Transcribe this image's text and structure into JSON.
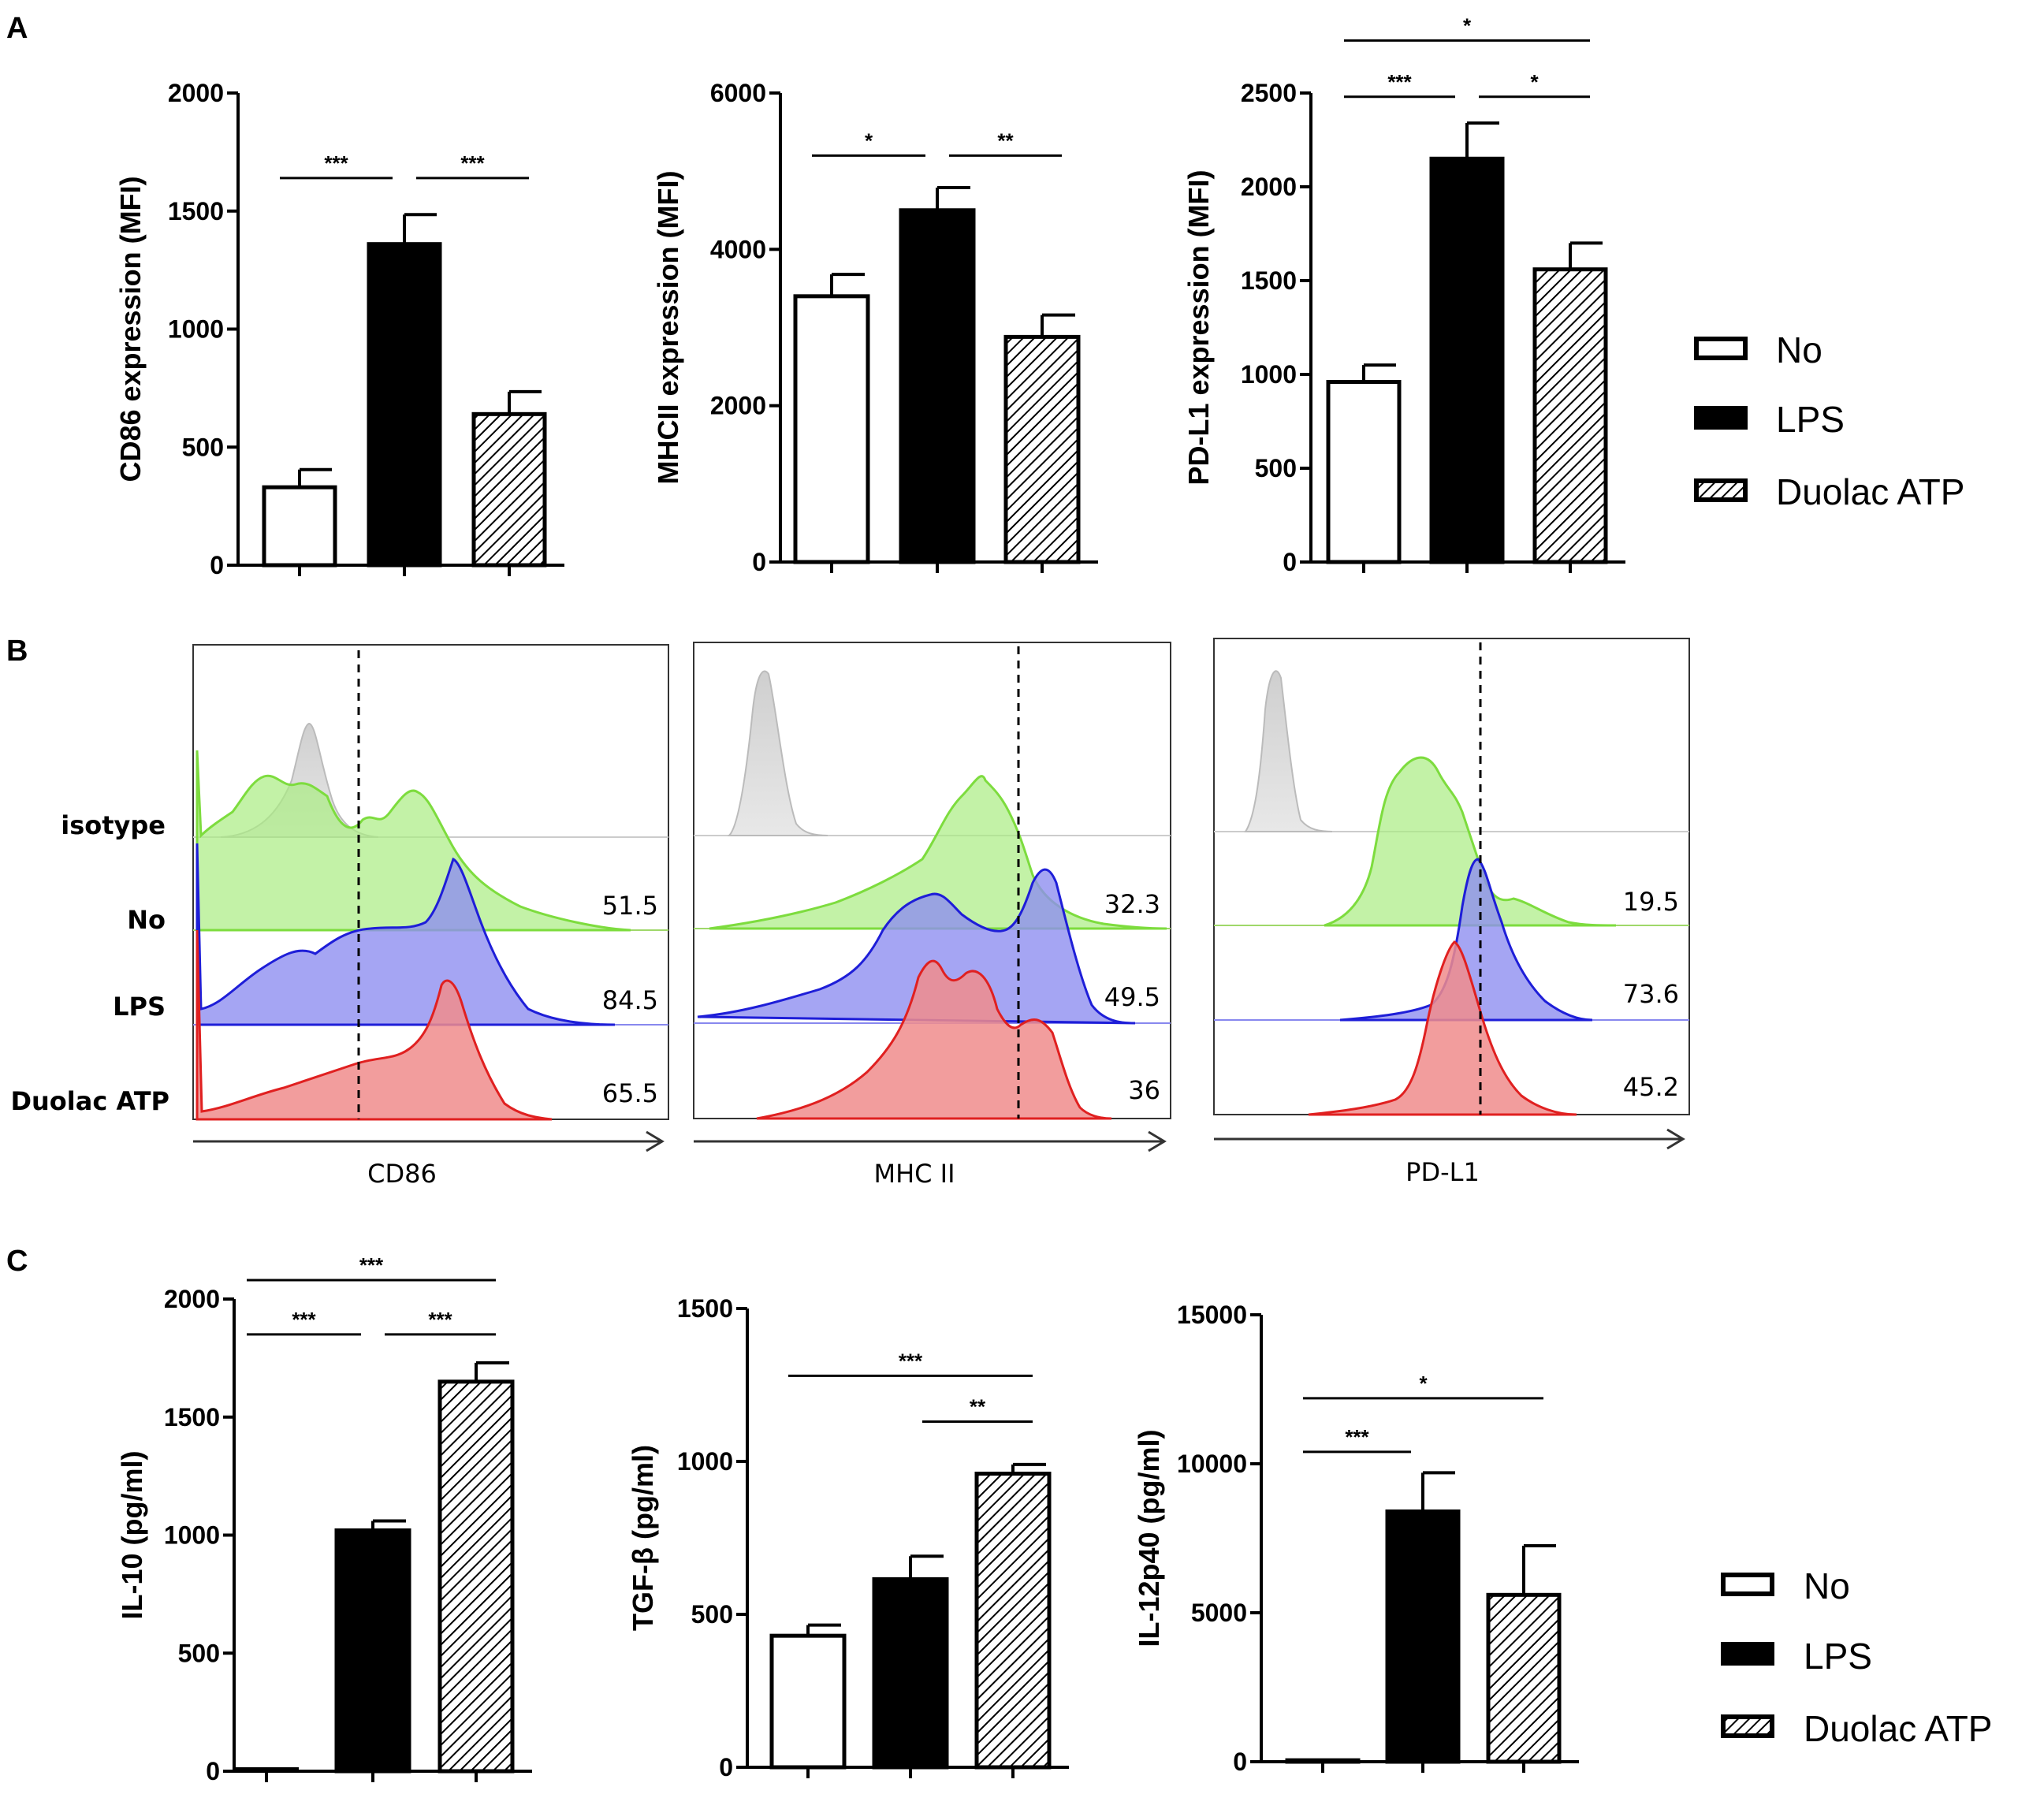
{
  "panel_labels": {
    "A": "A",
    "B": "B",
    "C": "C"
  },
  "legend_items": [
    {
      "label": "No",
      "fill": "white"
    },
    {
      "label": "LPS",
      "fill": "black"
    },
    {
      "label": "Duolac ATP",
      "fill": "hatch"
    }
  ],
  "chart_data": [
    {
      "id": "A1",
      "type": "bar",
      "categories": [
        "No",
        "LPS",
        "Duolac ATP"
      ],
      "values": [
        330,
        1360,
        640
      ],
      "errors": [
        75,
        125,
        95
      ],
      "ylabel": "CD86 expression (MFI)",
      "ylim": [
        0,
        2000
      ],
      "yticks": [
        0,
        500,
        1000,
        1500,
        2000
      ],
      "significance": [
        {
          "from": 0,
          "to": 1,
          "label": "***",
          "level": 1640
        },
        {
          "from": 1,
          "to": 2,
          "label": "***",
          "level": 1640
        }
      ]
    },
    {
      "id": "A2",
      "type": "bar",
      "categories": [
        "No",
        "LPS",
        "Duolac ATP"
      ],
      "values": [
        3400,
        4500,
        2880
      ],
      "errors": [
        280,
        290,
        280
      ],
      "ylabel": "MHCII expression (MFI)",
      "ylim": [
        0,
        6000
      ],
      "yticks": [
        0,
        2000,
        4000,
        6000
      ],
      "significance": [
        {
          "from": 0,
          "to": 1,
          "label": "*",
          "level": 5200
        },
        {
          "from": 1,
          "to": 2,
          "label": "**",
          "level": 5200
        }
      ]
    },
    {
      "id": "A3",
      "type": "bar",
      "categories": [
        "No",
        "LPS",
        "Duolac ATP"
      ],
      "values": [
        960,
        2150,
        1560
      ],
      "errors": [
        90,
        190,
        140
      ],
      "ylabel": "PD-L1 expression (MFI)",
      "ylim": [
        0,
        2500
      ],
      "yticks": [
        0,
        500,
        1000,
        1500,
        2000,
        2500
      ],
      "significance": [
        {
          "from": 0,
          "to": 1,
          "label": "***",
          "level": 2480
        },
        {
          "from": 1,
          "to": 2,
          "label": "*",
          "level": 2480
        },
        {
          "from": 0,
          "to": 2,
          "label": "*",
          "level": 2780
        }
      ]
    },
    {
      "id": "B1",
      "type": "histogram",
      "xlabel": "CD86",
      "row_labels": [
        "isotype",
        "No",
        "LPS",
        "Duolac ATP"
      ],
      "percentages": [
        "51.5",
        "84.5",
        "65.5"
      ]
    },
    {
      "id": "B2",
      "type": "histogram",
      "xlabel": "MHC II",
      "percentages": [
        "32.3",
        "49.5",
        "36"
      ]
    },
    {
      "id": "B3",
      "type": "histogram",
      "xlabel": "PD-L1",
      "percentages": [
        "19.5",
        "73.6",
        "45.2"
      ]
    },
    {
      "id": "C1",
      "type": "bar",
      "categories": [
        "No",
        "LPS",
        "Duolac ATP"
      ],
      "values": [
        0,
        1020,
        1650
      ],
      "errors": [
        0,
        40,
        80
      ],
      "ylabel": "IL-10 (pg/ml)",
      "ylim": [
        0,
        2000
      ],
      "yticks": [
        0,
        500,
        1000,
        1500,
        2000
      ],
      "significance": [
        {
          "from": 0,
          "to": 1,
          "label": "***",
          "level": 1850
        },
        {
          "from": 1,
          "to": 2,
          "label": "***",
          "level": 1850
        },
        {
          "from": 0,
          "to": 2,
          "label": "***",
          "level": 2080
        }
      ]
    },
    {
      "id": "C2",
      "type": "bar",
      "categories": [
        "No",
        "LPS",
        "Duolac ATP"
      ],
      "values": [
        430,
        615,
        960
      ],
      "errors": [
        35,
        75,
        30
      ],
      "ylabel": "TGF-β (pg/ml)",
      "ylim": [
        0,
        1500
      ],
      "yticks": [
        0,
        500,
        1000,
        1500
      ],
      "significance": [
        {
          "from": 1,
          "to": 2,
          "label": "**",
          "level": 1130
        },
        {
          "from": 0,
          "to": 2,
          "label": "***",
          "level": 1280
        }
      ]
    },
    {
      "id": "C3",
      "type": "bar",
      "categories": [
        "No",
        "LPS",
        "Duolac ATP"
      ],
      "values": [
        50,
        8400,
        5600
      ],
      "errors": [
        0,
        1300,
        1650
      ],
      "ylabel": "IL-12p40 (pg/ml)",
      "ylim": [
        0,
        15000
      ],
      "yticks": [
        0,
        5000,
        10000,
        15000
      ],
      "significance": [
        {
          "from": 0,
          "to": 1,
          "label": "***",
          "level": 10400
        },
        {
          "from": 0,
          "to": 2,
          "label": "*",
          "level": 12200
        }
      ]
    }
  ]
}
